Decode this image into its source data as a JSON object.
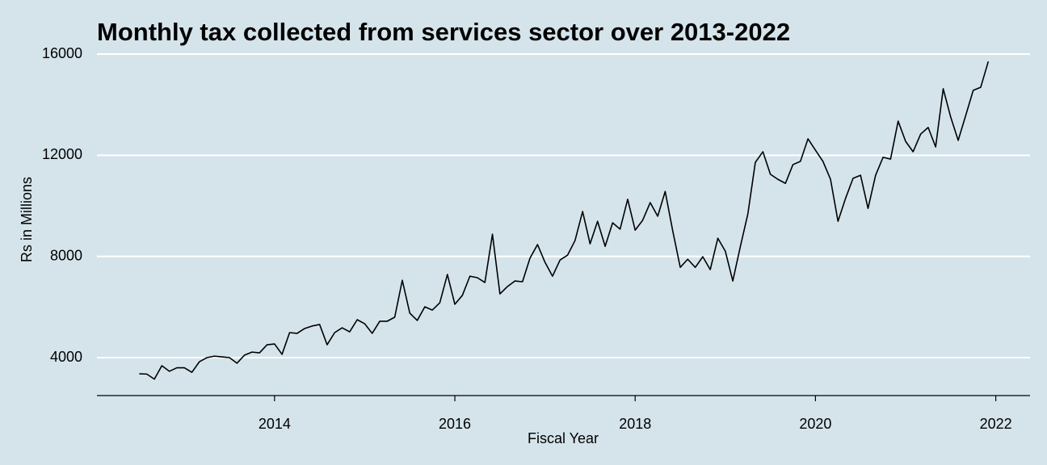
{
  "chart_data": {
    "type": "line",
    "title": "Monthly tax collected from services sector over 2013-2022",
    "x_label": "Fiscal Year",
    "y_label": "Rs in Millions",
    "x": [
      2012.5,
      2012.583,
      2012.667,
      2012.75,
      2012.833,
      2012.917,
      2013.0,
      2013.083,
      2013.167,
      2013.25,
      2013.333,
      2013.417,
      2013.5,
      2013.583,
      2013.667,
      2013.75,
      2013.833,
      2013.917,
      2014.0,
      2014.083,
      2014.167,
      2014.25,
      2014.333,
      2014.417,
      2014.5,
      2014.583,
      2014.667,
      2014.75,
      2014.833,
      2014.917,
      2015.0,
      2015.083,
      2015.167,
      2015.25,
      2015.333,
      2015.417,
      2015.5,
      2015.583,
      2015.667,
      2015.75,
      2015.833,
      2015.917,
      2016.0,
      2016.083,
      2016.167,
      2016.25,
      2016.333,
      2016.417,
      2016.5,
      2016.583,
      2016.667,
      2016.75,
      2016.833,
      2016.917,
      2017.0,
      2017.083,
      2017.167,
      2017.25,
      2017.333,
      2017.417,
      2017.5,
      2017.583,
      2017.667,
      2017.75,
      2017.833,
      2017.917,
      2018.0,
      2018.083,
      2018.167,
      2018.25,
      2018.333,
      2018.417,
      2018.5,
      2018.583,
      2018.667,
      2018.75,
      2018.833,
      2018.917,
      2019.0,
      2019.083,
      2019.167,
      2019.25,
      2019.333,
      2019.417,
      2019.5,
      2019.583,
      2019.667,
      2019.75,
      2019.833,
      2019.917,
      2020.0,
      2020.083,
      2020.167,
      2020.25,
      2020.333,
      2020.417,
      2020.5,
      2020.583,
      2020.667,
      2020.75,
      2020.833,
      2020.917,
      2021.0,
      2021.083,
      2021.167,
      2021.25,
      2021.333,
      2021.417,
      2021.5,
      2021.583,
      2021.667,
      2021.75,
      2021.833,
      2021.917
    ],
    "values": [
      3360,
      3350,
      3150,
      3680,
      3460,
      3600,
      3600,
      3420,
      3840,
      4000,
      4060,
      4030,
      4000,
      3780,
      4100,
      4220,
      4190,
      4510,
      4540,
      4130,
      4990,
      4960,
      5150,
      5250,
      5310,
      4510,
      4990,
      5180,
      5020,
      5500,
      5340,
      4960,
      5440,
      5440,
      5600,
      7060,
      5760,
      5470,
      6010,
      5880,
      6170,
      7290,
      6110,
      6460,
      7220,
      7160,
      6970,
      8880,
      6520,
      6810,
      7030,
      7000,
      7930,
      8470,
      7770,
      7220,
      7860,
      8050,
      8630,
      9780,
      8500,
      9390,
      8400,
      9330,
      9080,
      10260,
      9040,
      9430,
      10130,
      9590,
      10570,
      9010,
      7570,
      7890,
      7570,
      7990,
      7480,
      8720,
      8210,
      7030,
      8400,
      9680,
      11720,
      12140,
      11250,
      11050,
      10890,
      11630,
      11760,
      12650,
      12200,
      11760,
      11050,
      9390,
      10290,
      11090,
      11210,
      9900,
      11210,
      11920,
      11850,
      13350,
      12550,
      12140,
      12840,
      13100,
      12330,
      14630,
      13510,
      12590,
      13580,
      14570,
      14690,
      15710
    ],
    "color": "#000000",
    "xlim": [
      2012.03,
      2022.38
    ],
    "xticks": [
      2014,
      2016,
      2018,
      2020,
      2022
    ],
    "ylim": [
      2500,
      16400
    ],
    "yticks": [
      4000,
      8000,
      12000,
      16000
    ],
    "grid": true
  }
}
